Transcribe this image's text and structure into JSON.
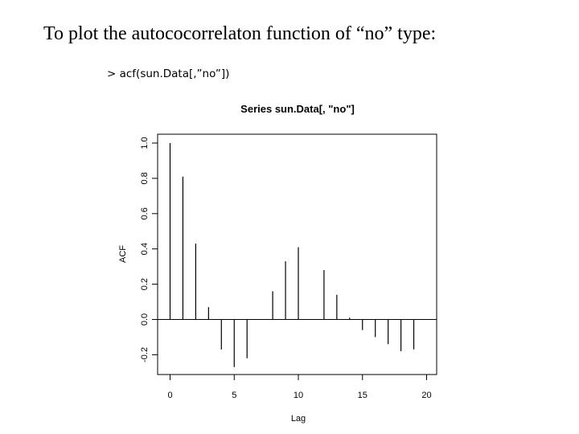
{
  "slide": {
    "heading": "To plot the autococorrelaton function of “no” type:",
    "command": "> acf(sun.Data[,”no”])"
  },
  "chart_data": {
    "type": "bar",
    "title": "Series  sun.Data[, \"no\"]",
    "xlabel": "Lag",
    "ylabel": "ACF",
    "x": [
      0,
      1,
      2,
      3,
      4,
      5,
      6,
      7,
      8,
      9,
      10,
      11,
      12,
      13,
      14,
      15,
      16,
      17,
      18,
      19
    ],
    "values": [
      1.0,
      0.81,
      0.43,
      0.07,
      -0.17,
      -0.27,
      -0.22,
      0.0,
      0.16,
      0.33,
      0.41,
      0.0,
      0.28,
      0.14,
      0.01,
      -0.06,
      -0.1,
      -0.14,
      -0.18,
      -0.17
    ],
    "xlim": [
      -1,
      20
    ],
    "ylim": [
      -0.3,
      1.05
    ],
    "xticks": [
      0,
      5,
      10,
      15,
      20
    ],
    "yticks": [
      -0.2,
      0.0,
      0.2,
      0.4,
      0.6,
      0.8,
      1.0
    ],
    "xtick_labels": [
      "0",
      "5",
      "10",
      "15",
      "20"
    ],
    "ytick_labels": [
      "-0.2",
      "0.0",
      "0.2",
      "0.4",
      "0.6",
      "0.8",
      "1.0"
    ],
    "grid": false,
    "zero_line": true
  }
}
